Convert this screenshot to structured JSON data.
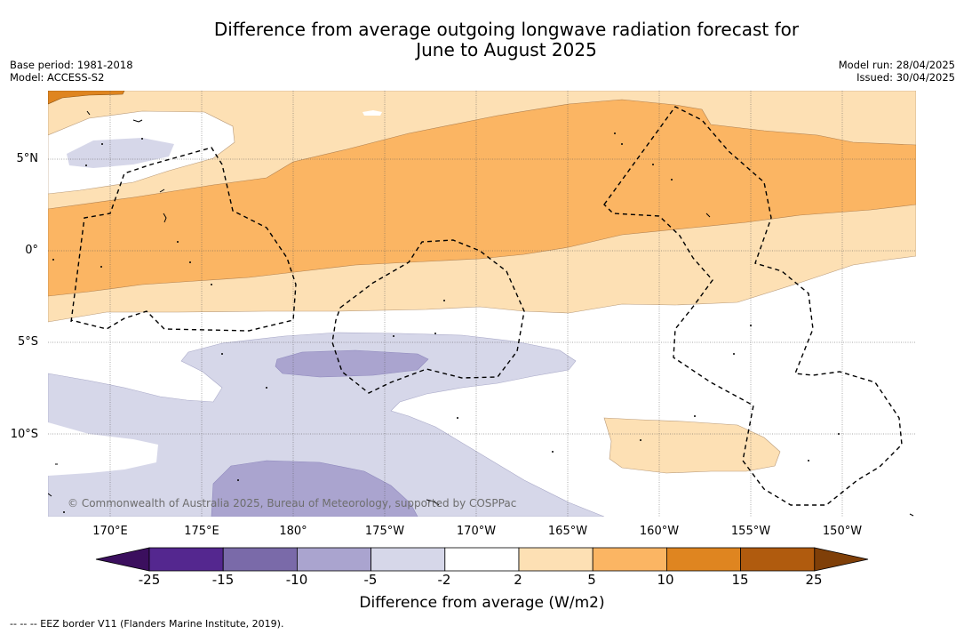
{
  "header": {
    "title_line1": "Difference from average outgoing longwave radiation forecast for",
    "title_line2": "June to August 2025",
    "base_period": "Base period: 1981-2018",
    "model": "Model: ACCESS-S2",
    "model_run": "Model run: 28/04/2025",
    "issued": "Issued: 30/04/2025"
  },
  "map": {
    "lat_labels": [
      "5°N",
      "0°",
      "5°S",
      "10°S"
    ],
    "lon_labels": [
      "170°E",
      "175°E",
      "180°",
      "175°W",
      "170°W",
      "165°W",
      "160°W",
      "155°W",
      "150°W"
    ],
    "copyright": "© Commonwealth of Australia 2025, Bureau of Meteorology, supported by COSPPac"
  },
  "colorbar": {
    "ticks": [
      "-25",
      "-15",
      "-10",
      "-5",
      "-2",
      "2",
      "5",
      "10",
      "15",
      "25"
    ],
    "colors": [
      "#3b0f5e",
      "#54278f",
      "#7a6aa9",
      "#aaa4cf",
      "#d6d7e9",
      "#ffffff",
      "#fde0b4",
      "#fbb563",
      "#df8520",
      "#b05b0e",
      "#7f3f08"
    ],
    "title": "Difference from average (W/m2)"
  },
  "footer": {
    "legend_text": "--  --  -- EEZ border V11 (Flanders Marine Institute, 2019)."
  }
}
